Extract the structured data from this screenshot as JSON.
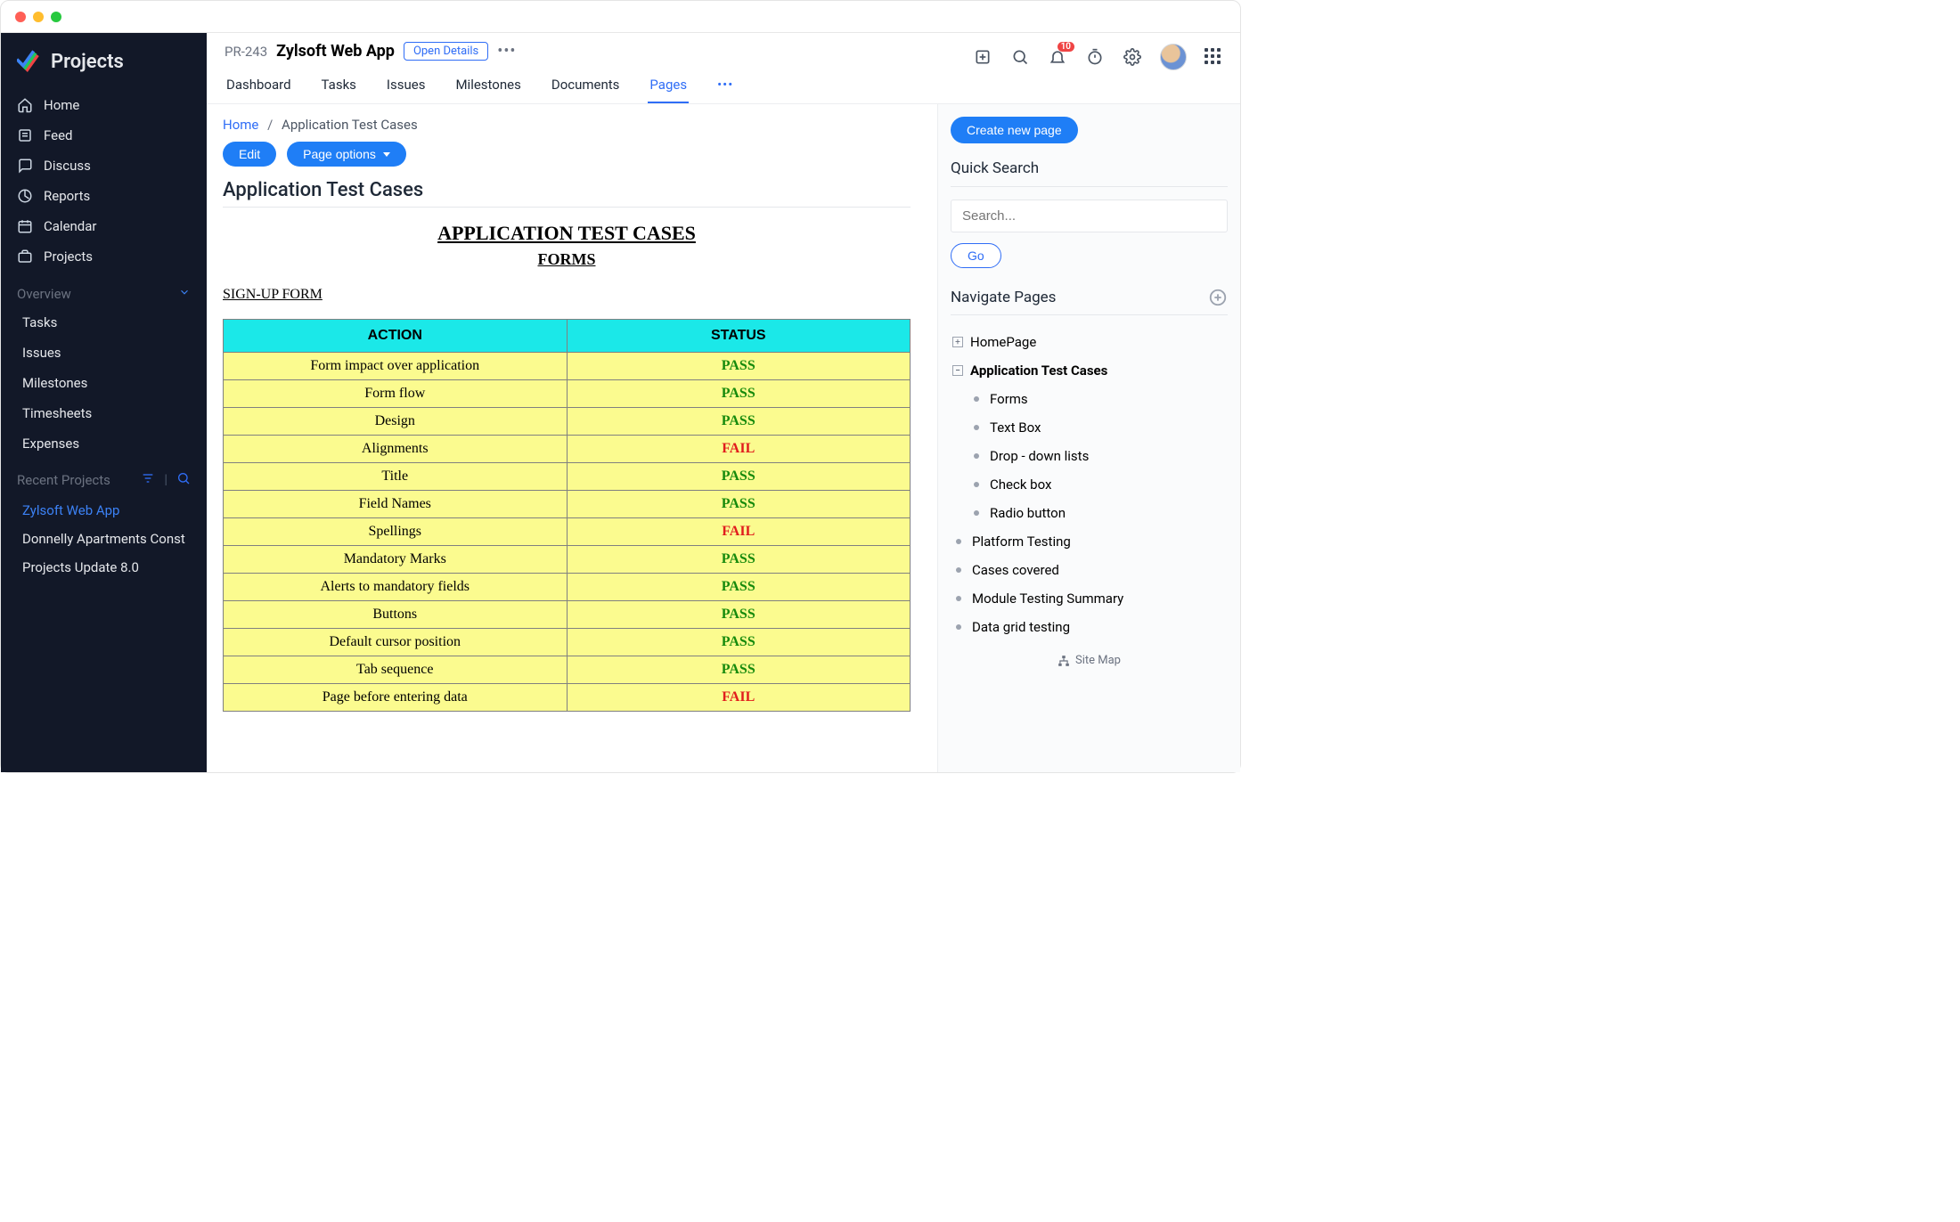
{
  "brand": "Projects",
  "sidebar": {
    "primary": [
      {
        "label": "Home",
        "icon": "home"
      },
      {
        "label": "Feed",
        "icon": "feed"
      },
      {
        "label": "Discuss",
        "icon": "discuss"
      },
      {
        "label": "Reports",
        "icon": "reports"
      },
      {
        "label": "Calendar",
        "icon": "calendar"
      },
      {
        "label": "Projects",
        "icon": "projects"
      }
    ],
    "overviewLabel": "Overview",
    "overview": [
      {
        "label": "Tasks"
      },
      {
        "label": "Issues"
      },
      {
        "label": "Milestones"
      },
      {
        "label": "Timesheets"
      },
      {
        "label": "Expenses"
      }
    ],
    "recentLabel": "Recent Projects",
    "recent": [
      {
        "label": "Zylsoft Web App",
        "active": true
      },
      {
        "label": "Donnelly Apartments Const",
        "active": false
      },
      {
        "label": "Projects Update 8.0",
        "active": false
      }
    ]
  },
  "topbar": {
    "code": "PR-243",
    "title": "Zylsoft Web App",
    "openDetails": "Open Details",
    "notifCount": "10",
    "tabs": [
      "Dashboard",
      "Tasks",
      "Issues",
      "Milestones",
      "Documents",
      "Pages"
    ],
    "activeTab": "Pages"
  },
  "breadcrumb": {
    "home": "Home",
    "current": "Application Test Cases"
  },
  "buttons": {
    "edit": "Edit",
    "pageOptions": "Page options"
  },
  "doc": {
    "pageTitle": "Application Test Cases",
    "h1": "APPLICATION TEST CASES",
    "h2": "FORMS",
    "section": "SIGN-UP FORM",
    "table": {
      "headers": [
        "ACTION",
        "STATUS"
      ],
      "headerBg": "#1be8e8",
      "rowBg": "#fbfb8f",
      "passColor": "#168a0c",
      "failColor": "#e11d1d",
      "rows": [
        {
          "action": "Form impact over application",
          "status": "PASS"
        },
        {
          "action": "Form flow",
          "status": "PASS"
        },
        {
          "action": "Design",
          "status": "PASS"
        },
        {
          "action": "Alignments",
          "status": "FAIL"
        },
        {
          "action": "Title",
          "status": "PASS"
        },
        {
          "action": "Field Names",
          "status": "PASS"
        },
        {
          "action": "Spellings",
          "status": "FAIL"
        },
        {
          "action": "Mandatory Marks",
          "status": "PASS"
        },
        {
          "action": "Alerts to mandatory fields",
          "status": "PASS"
        },
        {
          "action": "Buttons",
          "status": "PASS"
        },
        {
          "action": "Default cursor position",
          "status": "PASS"
        },
        {
          "action": "Tab sequence",
          "status": "PASS"
        },
        {
          "action": "Page before entering data",
          "status": "FAIL"
        }
      ]
    }
  },
  "rpanel": {
    "create": "Create new page",
    "quickSearch": "Quick Search",
    "searchPlaceholder": "Search...",
    "go": "Go",
    "navPagesTitle": "Navigate Pages",
    "tree": [
      {
        "type": "expand",
        "state": "plus",
        "label": "HomePage",
        "bold": false
      },
      {
        "type": "expand",
        "state": "minus",
        "label": "Application Test Cases",
        "bold": true
      },
      {
        "type": "child",
        "label": "Forms"
      },
      {
        "type": "child",
        "label": "Text Box"
      },
      {
        "type": "child",
        "label": "Drop - down lists"
      },
      {
        "type": "child",
        "label": "Check box"
      },
      {
        "type": "child",
        "label": "Radio button"
      },
      {
        "type": "bullet",
        "label": "Platform Testing"
      },
      {
        "type": "bullet",
        "label": "Cases covered"
      },
      {
        "type": "bullet",
        "label": "Module Testing Summary"
      },
      {
        "type": "bullet",
        "label": "Data grid testing"
      }
    ],
    "sitemap": "Site Map"
  }
}
